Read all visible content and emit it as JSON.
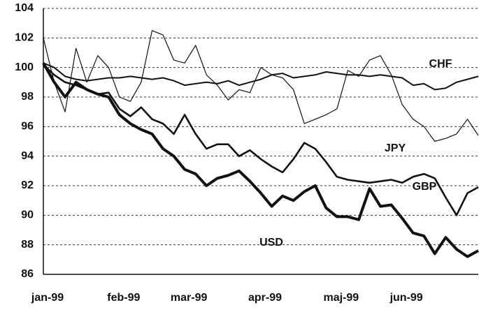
{
  "chart_data": {
    "type": "line",
    "categories": [
      "jan-99",
      null,
      null,
      null,
      null,
      null,
      null,
      "feb-99",
      null,
      null,
      null,
      null,
      null,
      "mar-99",
      null,
      null,
      null,
      null,
      null,
      null,
      "apr-99",
      null,
      null,
      null,
      null,
      null,
      null,
      "maj-99",
      null,
      null,
      null,
      null,
      null,
      "jun-99",
      null,
      null,
      null,
      null,
      null,
      null,
      null
    ],
    "series": [
      {
        "name": "CHF",
        "color": "#111111",
        "line_width": 2,
        "values": [
          100.3,
          100,
          99.4,
          99.2,
          99.1,
          99.2,
          99.3,
          99.3,
          99.4,
          99.3,
          99.2,
          99.3,
          99.1,
          98.8,
          98.9,
          99.0,
          98.9,
          99.1,
          98.8,
          99.0,
          99.2,
          99.5,
          99.6,
          99.3,
          99.4,
          99.5,
          99.7,
          99.6,
          99.5,
          99.5,
          99.4,
          99.5,
          99.4,
          99.3,
          98.8,
          98.9,
          98.5,
          98.6,
          99.0,
          99.2,
          99.4
        ]
      },
      {
        "name": "JPY",
        "color": "#111111",
        "line_width": 1.2,
        "values": [
          102,
          99,
          97,
          101.3,
          99,
          100.8,
          100,
          98,
          97.7,
          99,
          102.5,
          102.2,
          100.5,
          100.3,
          101.5,
          99.5,
          98.8,
          97.8,
          98.5,
          98.3,
          100,
          99.5,
          99.3,
          98.5,
          96.2,
          96.5,
          96.8,
          97.2,
          99.8,
          99.4,
          100.5,
          100.8,
          99.5,
          97.5,
          96.5,
          96,
          95,
          95.2,
          95.5,
          96.5,
          95.4
        ]
      },
      {
        "name": "GBP",
        "color": "#111111",
        "line_width": 2.6,
        "values": [
          100.2,
          99.5,
          99,
          98.8,
          98.5,
          98.2,
          98.3,
          97.2,
          96.7,
          97.3,
          96.5,
          96.2,
          95.5,
          96.8,
          95.5,
          94.5,
          94.8,
          94.8,
          94.0,
          94.4,
          93.8,
          93.3,
          92.9,
          93.8,
          94.9,
          94.5,
          93.6,
          92.6,
          92.4,
          92.3,
          92.2,
          92.3,
          92.4,
          92.2,
          92.6,
          92.8,
          92.5,
          91.2,
          90.0,
          91.5,
          91.9
        ]
      },
      {
        "name": "USD",
        "color": "#111111",
        "line_width": 4,
        "values": [
          100.3,
          99,
          98,
          99,
          98.5,
          98.2,
          98,
          96.8,
          96.2,
          95.8,
          95.5,
          94.5,
          94.0,
          93.1,
          92.8,
          92.0,
          92.5,
          92.7,
          93.0,
          92.3,
          91.5,
          90.6,
          91.3,
          91.0,
          91.6,
          92.0,
          90.5,
          89.9,
          89.9,
          89.7,
          91.8,
          90.6,
          90.7,
          89.8,
          88.8,
          88.6,
          87.4,
          88.5,
          87.7,
          87.2,
          87.6
        ]
      }
    ],
    "ylim": [
      86,
      104
    ],
    "yticks": [
      86,
      88,
      90,
      92,
      94,
      96,
      98,
      100,
      102,
      104
    ],
    "grid": true
  }
}
